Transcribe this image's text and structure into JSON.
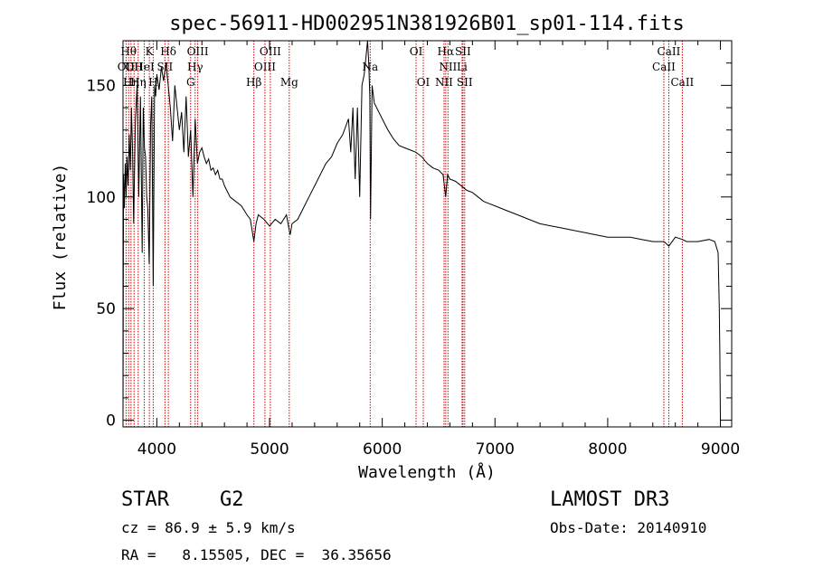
{
  "chart_data": {
    "type": "line",
    "title": "spec-56911-HD002951N381926B01_sp01-114.fits",
    "xlabel": "Wavelength (Å)",
    "ylabel": "Flux (relative)",
    "xlim": [
      3700,
      9100
    ],
    "ylim": [
      -3,
      170
    ],
    "x_ticks": [
      4000,
      5000,
      6000,
      7000,
      8000,
      9000
    ],
    "y_ticks": [
      0,
      50,
      100,
      150
    ],
    "grid": false,
    "series": [
      {
        "name": "spectrum",
        "color": "#000000",
        "x": [
          3700,
          3705,
          3712,
          3720,
          3728,
          3735,
          3745,
          3755,
          3765,
          3775,
          3785,
          3795,
          3810,
          3825,
          3840,
          3855,
          3870,
          3880,
          3890,
          3900,
          3910,
          3920,
          3933,
          3945,
          3955,
          3968,
          3980,
          3990,
          4000,
          4020,
          4040,
          4060,
          4080,
          4101,
          4120,
          4140,
          4160,
          4180,
          4200,
          4220,
          4240,
          4260,
          4280,
          4300,
          4320,
          4340,
          4360,
          4380,
          4400,
          4420,
          4440,
          4460,
          4480,
          4500,
          4520,
          4540,
          4560,
          4580,
          4600,
          4650,
          4700,
          4750,
          4800,
          4830,
          4861,
          4880,
          4900,
          4950,
          5000,
          5050,
          5100,
          5150,
          5183,
          5200,
          5250,
          5300,
          5350,
          5400,
          5450,
          5500,
          5550,
          5600,
          5650,
          5700,
          5720,
          5740,
          5760,
          5780,
          5800,
          5820,
          5840,
          5860,
          5870,
          5880,
          5890,
          5896,
          5910,
          5930,
          5950,
          6000,
          6050,
          6100,
          6150,
          6200,
          6250,
          6300,
          6350,
          6400,
          6450,
          6500,
          6540,
          6563,
          6580,
          6600,
          6650,
          6700,
          6750,
          6800,
          6850,
          6900,
          6950,
          7000,
          7100,
          7200,
          7300,
          7400,
          7500,
          7600,
          7700,
          7800,
          7900,
          8000,
          8100,
          8200,
          8300,
          8400,
          8500,
          8542,
          8600,
          8662,
          8700,
          8800,
          8900,
          8950,
          8980,
          8990,
          8995,
          9000
        ],
        "y": [
          0,
          110,
          95,
          115,
          100,
          118,
          105,
          128,
          112,
          140,
          120,
          88,
          135,
          150,
          100,
          145,
          75,
          140,
          122,
          118,
          100,
          95,
          70,
          132,
          145,
          60,
          150,
          145,
          155,
          148,
          158,
          152,
          160,
          150,
          140,
          125,
          150,
          140,
          130,
          138,
          120,
          145,
          118,
          130,
          100,
          135,
          115,
          120,
          122,
          118,
          115,
          117,
          112,
          113,
          110,
          112,
          108,
          108,
          105,
          100,
          98,
          96,
          92,
          90,
          80,
          88,
          92,
          90,
          87,
          90,
          88,
          92,
          83,
          88,
          90,
          95,
          100,
          105,
          110,
          115,
          118,
          124,
          128,
          135,
          120,
          140,
          108,
          140,
          100,
          150,
          155,
          165,
          170,
          160,
          145,
          90,
          150,
          142,
          140,
          135,
          130,
          126,
          123,
          122,
          121,
          120,
          118,
          115,
          113,
          112,
          110,
          100,
          110,
          108,
          107,
          105,
          103,
          102,
          100,
          98,
          97,
          96,
          94,
          92,
          90,
          88,
          87,
          86,
          85,
          84,
          83,
          82,
          82,
          82,
          81,
          80,
          80,
          78,
          82,
          81,
          80,
          80,
          81,
          80,
          75,
          50,
          30,
          0
        ]
      }
    ],
    "line_markers": [
      {
        "wl": 3727,
        "label": "OII",
        "row": 2
      },
      {
        "wl": 3750,
        "label": "Hθ",
        "row": 1
      },
      {
        "wl": 3771,
        "label": "Hη",
        "row": 3
      },
      {
        "wl": 3798,
        "label": "OII",
        "row": 2
      },
      {
        "wl": 3835,
        "label": "Hη",
        "row": 3
      },
      {
        "wl": 3889,
        "label": "HeI",
        "row": 2
      },
      {
        "wl": 3934,
        "label": "K",
        "row": 1
      },
      {
        "wl": 3968,
        "label": "H",
        "row": 3
      },
      {
        "wl": 4072,
        "label": "SII",
        "row": 2
      },
      {
        "wl": 4102,
        "label": "Hδ",
        "row": 1
      },
      {
        "wl": 4300,
        "label": "G",
        "row": 3
      },
      {
        "wl": 4340,
        "label": "Hγ",
        "row": 2
      },
      {
        "wl": 4363,
        "label": "OIII",
        "row": 1
      },
      {
        "wl": 4861,
        "label": "Hβ",
        "row": 3
      },
      {
        "wl": 4959,
        "label": "OIII",
        "row": 2
      },
      {
        "wl": 5007,
        "label": "OIII",
        "row": 1
      },
      {
        "wl": 5175,
        "label": "Mg",
        "row": 3
      },
      {
        "wl": 5893,
        "label": "Na",
        "row": 2
      },
      {
        "wl": 6300,
        "label": "OI",
        "row": 1
      },
      {
        "wl": 6364,
        "label": "OI",
        "row": 3
      },
      {
        "wl": 6548,
        "label": "NII",
        "row": 3
      },
      {
        "wl": 6563,
        "label": "Hα",
        "row": 1
      },
      {
        "wl": 6583,
        "label": "NII",
        "row": 2
      },
      {
        "wl": 6708,
        "label": "Li",
        "row": 2
      },
      {
        "wl": 6716,
        "label": "SII",
        "row": 1
      },
      {
        "wl": 6731,
        "label": "SII",
        "row": 3
      },
      {
        "wl": 8498,
        "label": "CaII",
        "row": 2
      },
      {
        "wl": 8542,
        "label": "CaII",
        "row": 1
      },
      {
        "wl": 8662,
        "label": "CaII",
        "row": 3
      }
    ],
    "marker_color": "#cc0000"
  },
  "info": {
    "object_type": "STAR",
    "subclass": "G2",
    "survey": "LAMOST DR3",
    "redshift": "cz = 86.9 ± 5.9 km/s",
    "obs_date": "Obs-Date: 20140910",
    "coords": "RA =   8.15505, DEC =  36.35656"
  }
}
